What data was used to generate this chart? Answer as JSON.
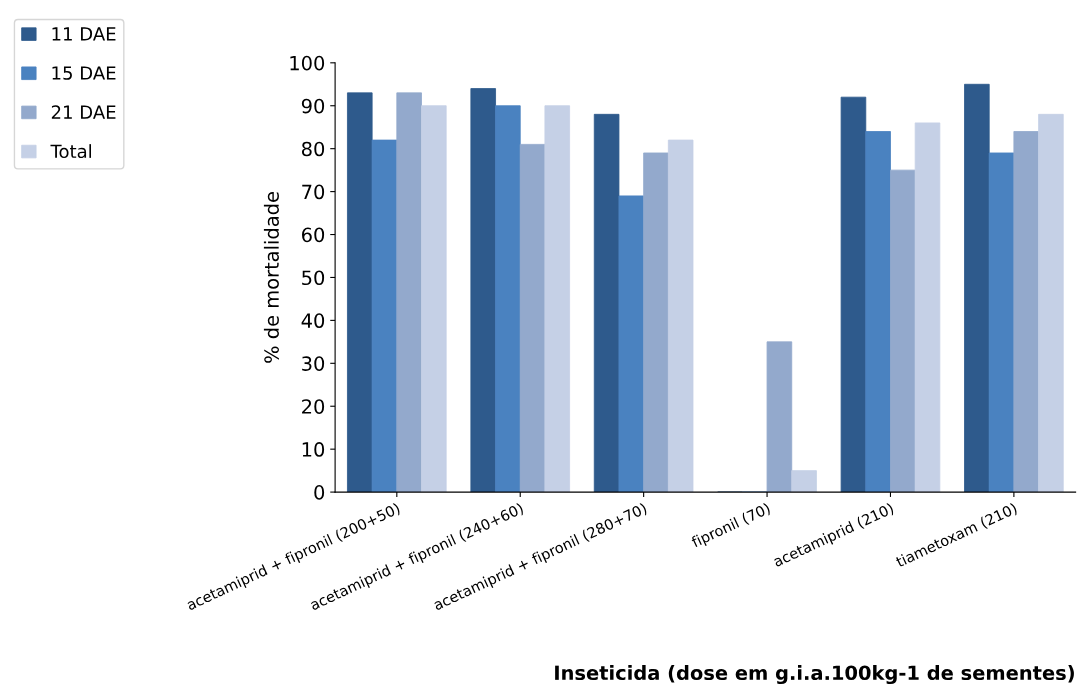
{
  "chart_data": {
    "type": "bar",
    "xlabel": "Inseticida (dose em g.i.a.100kg-1 de sementes)",
    "ylabel": "% de mortalidade",
    "categories": [
      "acetamiprid + fipronil (200+50)",
      "acetamiprid + fipronil (240+60)",
      "acetamiprid + fipronil (280+70)",
      "fipronil (70)",
      "acetamiprid (210)",
      "tiametoxam (210)"
    ],
    "series": [
      {
        "name": "11 DAE",
        "color": "#2e5a8c",
        "values": [
          93,
          94,
          88,
          0,
          92,
          95
        ]
      },
      {
        "name": "15 DAE",
        "color": "#4a82c0",
        "values": [
          82,
          90,
          69,
          0,
          84,
          79
        ]
      },
      {
        "name": "21 DAE",
        "color": "#93a9cc",
        "values": [
          93,
          81,
          79,
          35,
          75,
          84
        ]
      },
      {
        "name": "Total",
        "color": "#c5d0e6",
        "values": [
          90,
          90,
          82,
          5,
          86,
          88
        ]
      }
    ],
    "ylim": [
      0,
      100
    ],
    "yticks": [
      0,
      10,
      20,
      30,
      40,
      50,
      60,
      70,
      80,
      90,
      100
    ],
    "grid": false,
    "legend": "top left"
  }
}
